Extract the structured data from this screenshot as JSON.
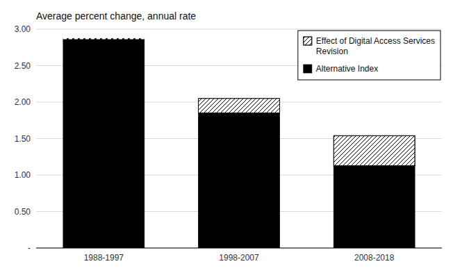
{
  "chart_data": {
    "type": "bar",
    "stacked": true,
    "title": "Average percent change, annual rate",
    "categories": [
      "1988-1997",
      "1998-2007",
      "2008-2018"
    ],
    "series": [
      {
        "name": "Alternative Index",
        "color": "#000000",
        "values": [
          2.87,
          1.85,
          1.13
        ]
      },
      {
        "name": "Effect of Digital Access Services\nRevision",
        "color": "#ffffff",
        "values": [
          0.0,
          0.2,
          0.41
        ]
      }
    ],
    "reference_line": {
      "value": 2.87,
      "category": "1988-1997",
      "color": "#ffffff",
      "line_style": "dashed"
    },
    "ylim": [
      0,
      3.0
    ],
    "yticks": [
      {
        "value": 0,
        "label": "-"
      },
      {
        "value": 0.5,
        "label": "0.50"
      },
      {
        "value": 1.0,
        "label": "1.00"
      },
      {
        "value": 1.5,
        "label": "1.50"
      },
      {
        "value": 2.0,
        "label": "2.00"
      },
      {
        "value": 2.5,
        "label": "2.50"
      },
      {
        "value": 3.0,
        "label": "3.00"
      }
    ],
    "grid": true,
    "legend": "upper right"
  }
}
